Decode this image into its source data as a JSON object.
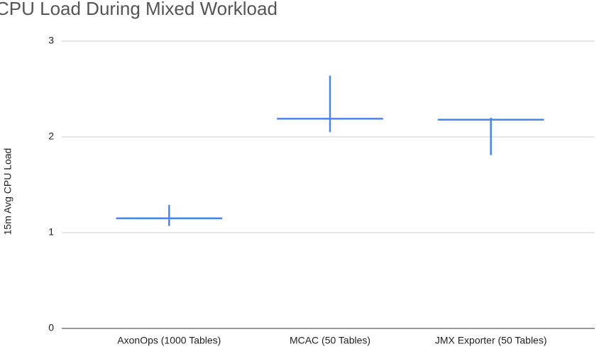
{
  "chart_data": {
    "type": "range",
    "title": "CPU Load During Mixed Workload",
    "y_label": "15m Avg CPU Load",
    "categories": [
      "AxonOps (1000 Tables)",
      "MCAC (50 Tables)",
      "JMX Exporter (50 Tables)"
    ],
    "values": [
      1.15,
      2.19,
      2.18
    ],
    "highs": [
      1.29,
      2.64,
      2.2
    ],
    "lows": [
      1.07,
      2.05,
      1.81
    ],
    "color": "#4a86e8",
    "ylim": [
      0,
      3
    ],
    "yticks": [
      0,
      1,
      2,
      3
    ],
    "grid": true
  }
}
